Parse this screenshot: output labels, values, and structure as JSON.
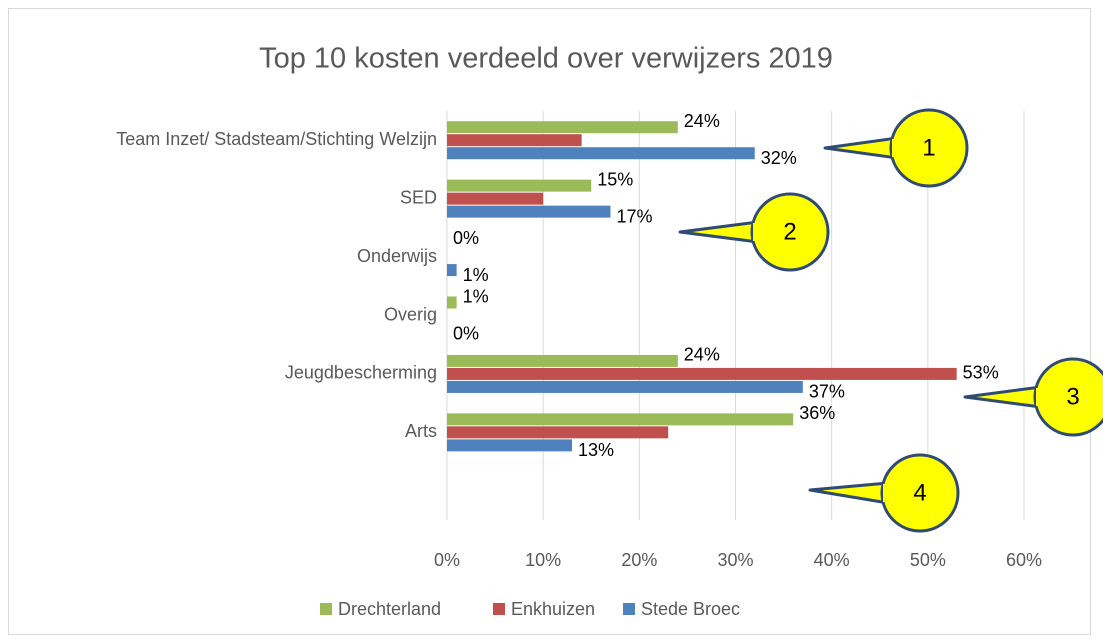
{
  "chart_data": {
    "type": "bar",
    "orientation": "horizontal",
    "title": "Top 10 kosten verdeeld over verwijzers 2019",
    "categories": [
      "Team Inzet/ Stadsteam/Stichting Welzijn",
      "SED",
      "Onderwijs",
      "Overig",
      "Jeugdbescherming",
      "Arts",
      null
    ],
    "series": [
      {
        "name": "Drechterland",
        "color": "#9bbb59",
        "values": [
          24,
          15,
          0,
          1,
          24,
          36,
          null
        ],
        "value_labels": [
          "24%",
          "15%",
          "0%",
          "1%",
          "24%",
          "36%",
          null
        ]
      },
      {
        "name": "Enkhuizen",
        "color": "#c0504d",
        "values": [
          14,
          10,
          0,
          0,
          53,
          23,
          null
        ],
        "value_labels": [
          null,
          null,
          null,
          null,
          "53%",
          null,
          null
        ]
      },
      {
        "name": "Stede Broec",
        "color": "#4f81bd",
        "values": [
          32,
          17,
          1,
          0,
          37,
          13,
          null
        ],
        "value_labels": [
          "32%",
          "17%",
          "1%",
          "0%",
          "37%",
          "13%",
          null
        ]
      }
    ],
    "xlim": [
      0,
      60
    ],
    "xticks": [
      {
        "value": 0,
        "label": "0%"
      },
      {
        "value": 10,
        "label": "10%"
      },
      {
        "value": 20,
        "label": "20%"
      },
      {
        "value": 30,
        "label": "30%"
      },
      {
        "value": 40,
        "label": "40%"
      },
      {
        "value": 50,
        "label": "50%"
      },
      {
        "value": 60,
        "label": "60%"
      }
    ],
    "grid": true,
    "legend": "bottom",
    "annotations": [
      "1",
      "2",
      "3",
      "4"
    ]
  }
}
